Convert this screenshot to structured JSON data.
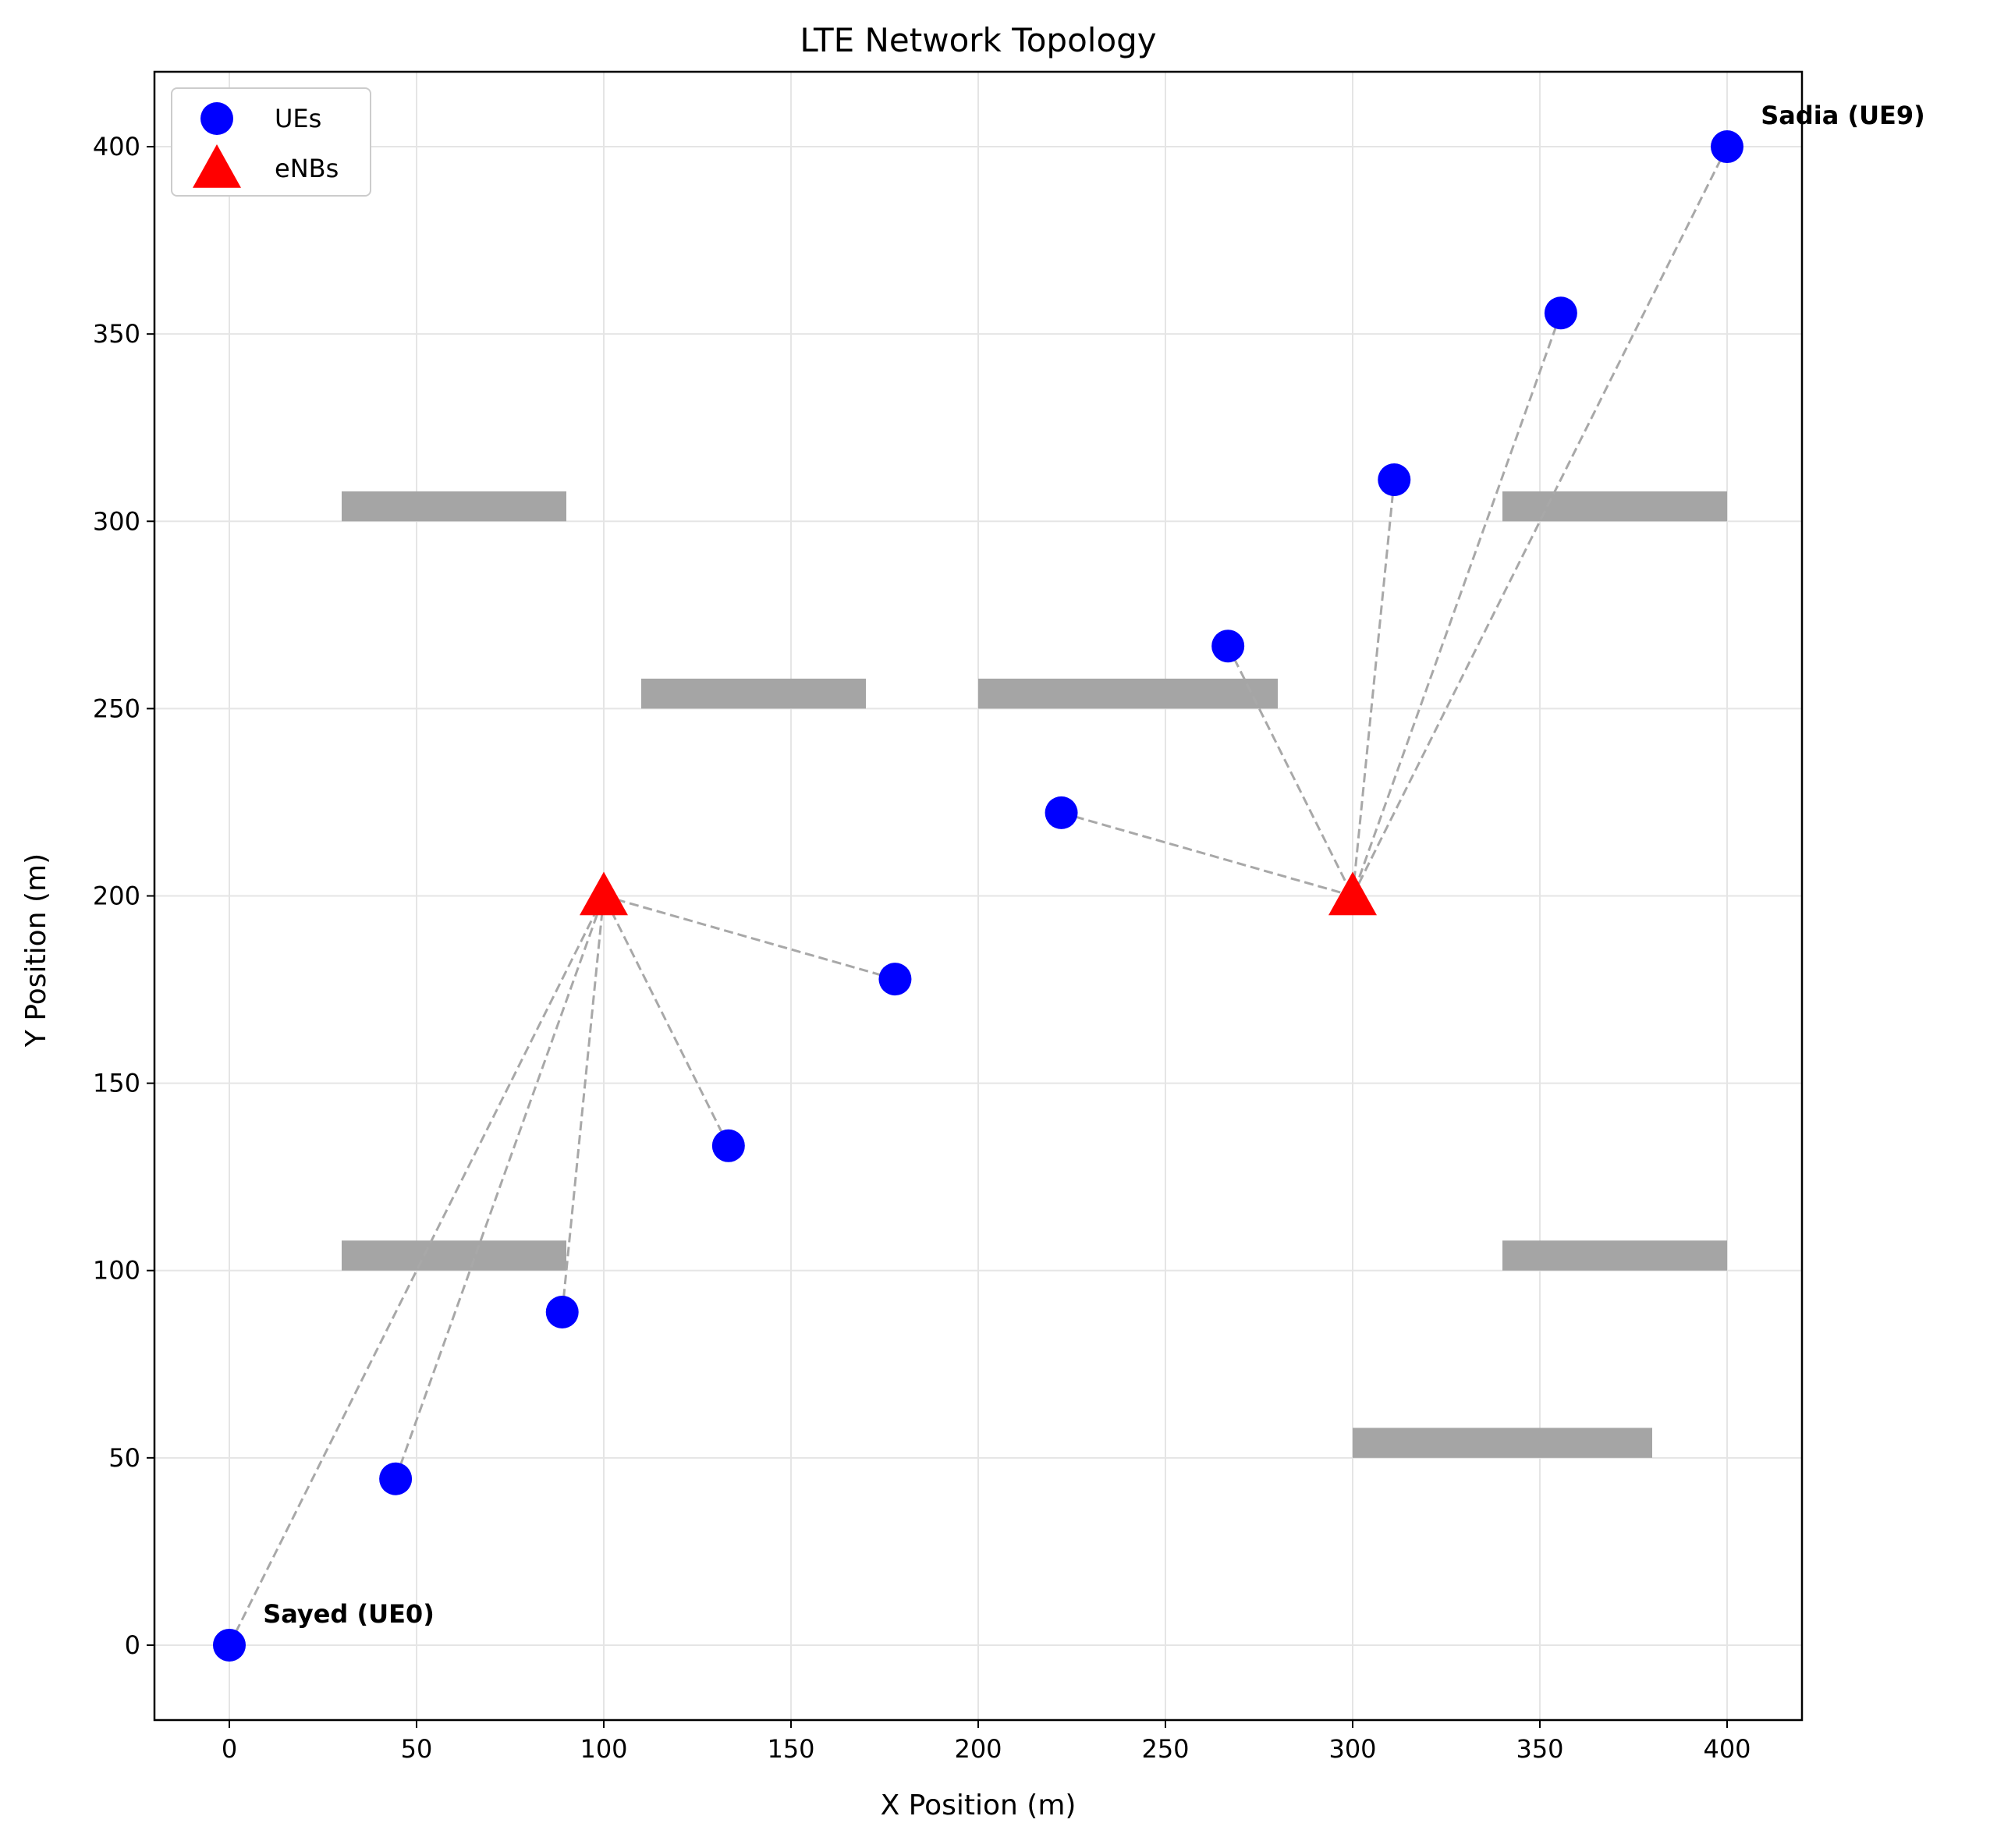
{
  "chart_data": {
    "type": "scatter",
    "title": "LTE Network Topology",
    "xlabel": "X Position (m)",
    "ylabel": "Y Position (m)",
    "xlim": [
      -20,
      420
    ],
    "ylim": [
      -20,
      420
    ],
    "xticks": [
      0,
      50,
      100,
      150,
      200,
      250,
      300,
      350,
      400
    ],
    "yticks": [
      0,
      50,
      100,
      150,
      200,
      250,
      300,
      350,
      400
    ],
    "grid": true,
    "legend_position": "top-left",
    "legend": [
      {
        "label": "UEs",
        "marker": "circle",
        "color": "#0000ff"
      },
      {
        "label": "eNBs",
        "marker": "triangle",
        "color": "#ff0000"
      }
    ],
    "series": [
      {
        "name": "UEs",
        "color": "#0000ff",
        "points": [
          {
            "x": 0,
            "y": 0
          },
          {
            "x": 44.4,
            "y": 44.4
          },
          {
            "x": 88.9,
            "y": 88.9
          },
          {
            "x": 133.3,
            "y": 133.3
          },
          {
            "x": 177.8,
            "y": 177.8
          },
          {
            "x": 222.2,
            "y": 222.2
          },
          {
            "x": 266.7,
            "y": 266.7
          },
          {
            "x": 311.1,
            "y": 311.1
          },
          {
            "x": 355.6,
            "y": 355.6
          },
          {
            "x": 400,
            "y": 400
          }
        ]
      },
      {
        "name": "eNBs",
        "color": "#ff0000",
        "points": [
          {
            "x": 100,
            "y": 200
          },
          {
            "x": 300,
            "y": 200
          }
        ]
      }
    ],
    "connections": [
      {
        "ue": 0,
        "enb": 0
      },
      {
        "ue": 1,
        "enb": 0
      },
      {
        "ue": 2,
        "enb": 0
      },
      {
        "ue": 3,
        "enb": 0
      },
      {
        "ue": 4,
        "enb": 0
      },
      {
        "ue": 5,
        "enb": 1
      },
      {
        "ue": 6,
        "enb": 1
      },
      {
        "ue": 7,
        "enb": 1
      },
      {
        "ue": 8,
        "enb": 1
      },
      {
        "ue": 9,
        "enb": 1
      }
    ],
    "obstacles": [
      {
        "x1": 30,
        "x2": 90,
        "y1": 300,
        "y2": 308
      },
      {
        "x1": 110,
        "x2": 170,
        "y1": 250,
        "y2": 258
      },
      {
        "x1": 200,
        "x2": 280,
        "y1": 250,
        "y2": 258
      },
      {
        "x1": 340,
        "x2": 400,
        "y1": 300,
        "y2": 308
      },
      {
        "x1": 30,
        "x2": 90,
        "y1": 100,
        "y2": 108
      },
      {
        "x1": 340,
        "x2": 400,
        "y1": 100,
        "y2": 108
      },
      {
        "x1": 300,
        "x2": 380,
        "y1": 50,
        "y2": 58
      }
    ],
    "obstacle_color": "#a5a5a5",
    "line_color": "#a8a8a8",
    "annotations": [
      {
        "text": "Sayed (UE0)",
        "x": 9,
        "y": 6
      },
      {
        "text": "Sadia (UE9)",
        "x": 409,
        "y": 406
      }
    ]
  }
}
